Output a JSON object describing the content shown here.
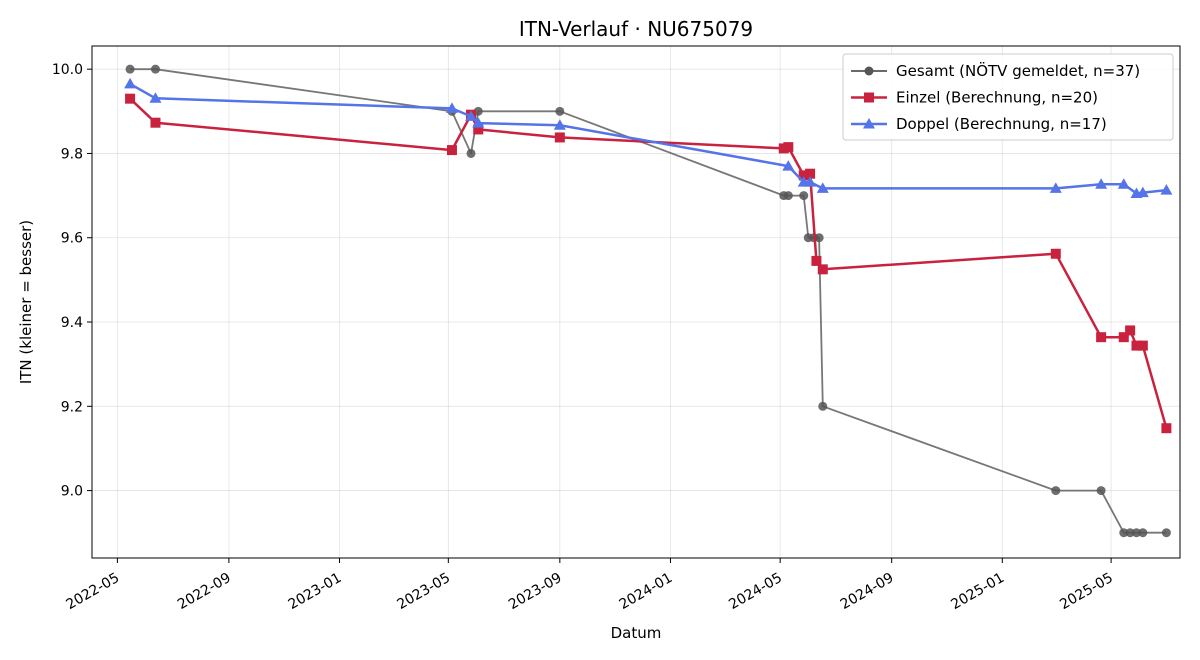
{
  "chart_data": {
    "type": "line",
    "title": "ITN-Verlauf · NU675079",
    "xlabel": "Datum",
    "ylabel": "ITN  (kleiner = besser)",
    "grid": true,
    "legend_position": "top-right",
    "x_ticks": [
      "2022-05",
      "2022-09",
      "2023-01",
      "2023-05",
      "2023-09",
      "2024-01",
      "2024-05",
      "2024-09",
      "2025-01",
      "2025-05"
    ],
    "y_ticks": [
      "9.0",
      "9.2",
      "9.4",
      "9.6",
      "9.8",
      "10.0"
    ],
    "xlim": [
      "2022-04-03",
      "2025-07-16"
    ],
    "ylim": [
      8.84,
      10.055
    ],
    "series": [
      {
        "name": "Gesamt (NÖTV gemeldet, n=37)",
        "color": "#555555",
        "marker": "circle",
        "x": [
          "2022-05-15",
          "2022-06-12",
          "2023-05-05",
          "2023-05-26",
          "2023-06-03",
          "2023-09-01",
          "2024-05-05",
          "2024-05-10",
          "2024-05-27",
          "2024-06-01",
          "2024-06-07",
          "2024-06-13",
          "2024-06-17",
          "2025-03-01",
          "2025-04-20",
          "2025-05-15",
          "2025-05-22",
          "2025-05-29",
          "2025-06-05",
          "2025-07-01"
        ],
        "y": [
          10.0,
          10.0,
          9.9,
          9.8,
          9.9,
          9.9,
          9.7,
          9.7,
          9.7,
          9.6,
          9.6,
          9.6,
          9.2,
          9.0,
          9.0,
          8.9,
          8.9,
          8.9,
          8.9,
          8.9
        ]
      },
      {
        "name": "Einzel (Berechnung, n=20)",
        "color": "#c8223f",
        "marker": "square",
        "x": [
          "2022-05-15",
          "2022-06-12",
          "2023-05-05",
          "2023-05-26",
          "2023-06-03",
          "2023-09-01",
          "2024-05-05",
          "2024-05-10",
          "2024-05-27",
          "2024-06-03",
          "2024-06-10",
          "2024-06-17",
          "2025-03-01",
          "2025-04-20",
          "2025-05-15",
          "2025-05-22",
          "2025-05-29",
          "2025-06-05",
          "2025-07-01"
        ],
        "y": [
          9.93,
          9.873,
          9.808,
          9.892,
          9.857,
          9.838,
          9.812,
          9.815,
          9.748,
          9.752,
          9.545,
          9.525,
          9.562,
          9.364,
          9.364,
          9.38,
          9.344,
          9.344,
          9.148
        ]
      },
      {
        "name": "Doppel (Berechnung, n=17)",
        "color": "#5474e8",
        "marker": "triangle",
        "x": [
          "2022-05-15",
          "2022-06-12",
          "2023-05-05",
          "2023-05-26",
          "2023-06-03",
          "2023-09-01",
          "2024-05-10",
          "2024-05-27",
          "2024-06-03",
          "2024-06-17",
          "2025-03-01",
          "2025-04-20",
          "2025-05-15",
          "2025-05-29",
          "2025-06-05",
          "2025-07-01"
        ],
        "y": [
          9.965,
          9.931,
          9.907,
          9.888,
          9.872,
          9.867,
          9.77,
          9.732,
          9.732,
          9.717,
          9.717,
          9.727,
          9.727,
          9.705,
          9.707,
          9.713
        ]
      }
    ]
  }
}
